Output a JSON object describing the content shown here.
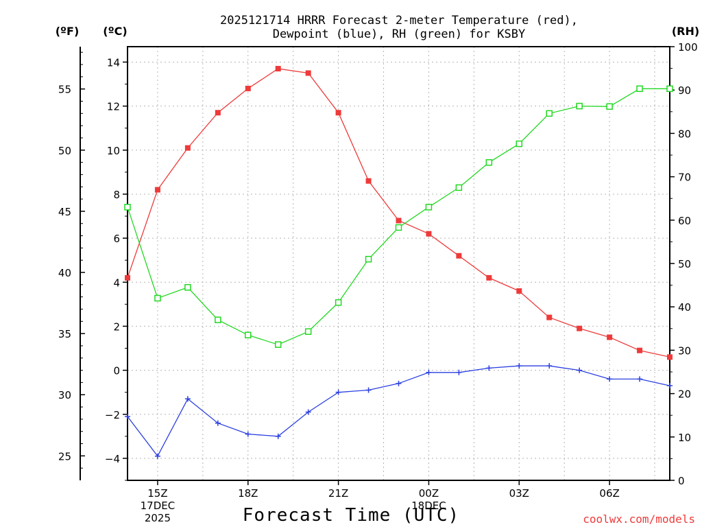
{
  "chart_data": {
    "type": "line",
    "title_line1": "2025121714 HRRR Forecast 2-meter Temperature (red),",
    "title_line2": "Dewpoint (blue), RH (green) for KSBY",
    "xlabel": "Forecast Time (UTC)",
    "credit": "coolwx.com/models",
    "units": {
      "fahrenheit": "(ºF)",
      "celsius": "(ºC)",
      "rh": "(RH)"
    },
    "x_hours": [
      14,
      15,
      16,
      17,
      18,
      19,
      20,
      21,
      22,
      23,
      24,
      25,
      26,
      27,
      28,
      29,
      30,
      31,
      32
    ],
    "xlim": [
      14,
      32
    ],
    "x_ticks": [
      {
        "hour": 15,
        "line1": "15Z",
        "line2": "17DEC",
        "line3": "2025"
      },
      {
        "hour": 18,
        "line1": "18Z",
        "line2": "",
        "line3": ""
      },
      {
        "hour": 21,
        "line1": "21Z",
        "line2": "",
        "line3": ""
      },
      {
        "hour": 24,
        "line1": "00Z",
        "line2": "18DEC",
        "line3": ""
      },
      {
        "hour": 27,
        "line1": "03Z",
        "line2": "",
        "line3": ""
      },
      {
        "hour": 30,
        "line1": "06Z",
        "line2": "",
        "line3": ""
      }
    ],
    "celsius_axis": {
      "range": [
        -5,
        14.7
      ],
      "ticks": [
        "14",
        "12",
        "10",
        "8",
        "6",
        "4",
        "2",
        "0",
        "−2",
        "−4"
      ]
    },
    "fahrenheit_axis": {
      "ticks": [
        "55",
        "50",
        "45",
        "40",
        "35",
        "30",
        "25"
      ]
    },
    "rh_axis": {
      "range": [
        0,
        100
      ],
      "ticks": [
        "100",
        "90",
        "80",
        "70",
        "60",
        "50",
        "40",
        "30",
        "20",
        "10",
        "0"
      ]
    },
    "series": [
      {
        "name": "2-meter Temperature",
        "unit": "C",
        "color": "#ee3a3a",
        "marker": "filled-square",
        "values": [
          4.2,
          8.2,
          10.1,
          11.7,
          12.8,
          13.7,
          13.5,
          11.7,
          8.6,
          6.8,
          6.2,
          5.2,
          4.2,
          3.6,
          2.4,
          1.9,
          1.5,
          0.9,
          0.6
        ]
      },
      {
        "name": "Dewpoint",
        "unit": "C",
        "color": "#2a3fe0",
        "marker": "plus",
        "values": [
          -2.1,
          -3.9,
          -1.3,
          -2.4,
          -2.9,
          -3.0,
          -1.9,
          -1.0,
          -0.9,
          -0.6,
          -0.1,
          -0.1,
          0.1,
          0.2,
          0.2,
          0.0,
          -0.4,
          -0.4,
          -0.7
        ]
      },
      {
        "name": "RH",
        "unit": "%",
        "color": "#22d822",
        "marker": "open-square",
        "values": [
          63,
          42,
          44.5,
          37,
          33.5,
          31.3,
          34.3,
          41,
          51,
          58.3,
          63,
          67.5,
          73.3,
          77.6,
          84.6,
          86.3,
          86.2,
          90.3,
          90.3
        ]
      }
    ]
  }
}
